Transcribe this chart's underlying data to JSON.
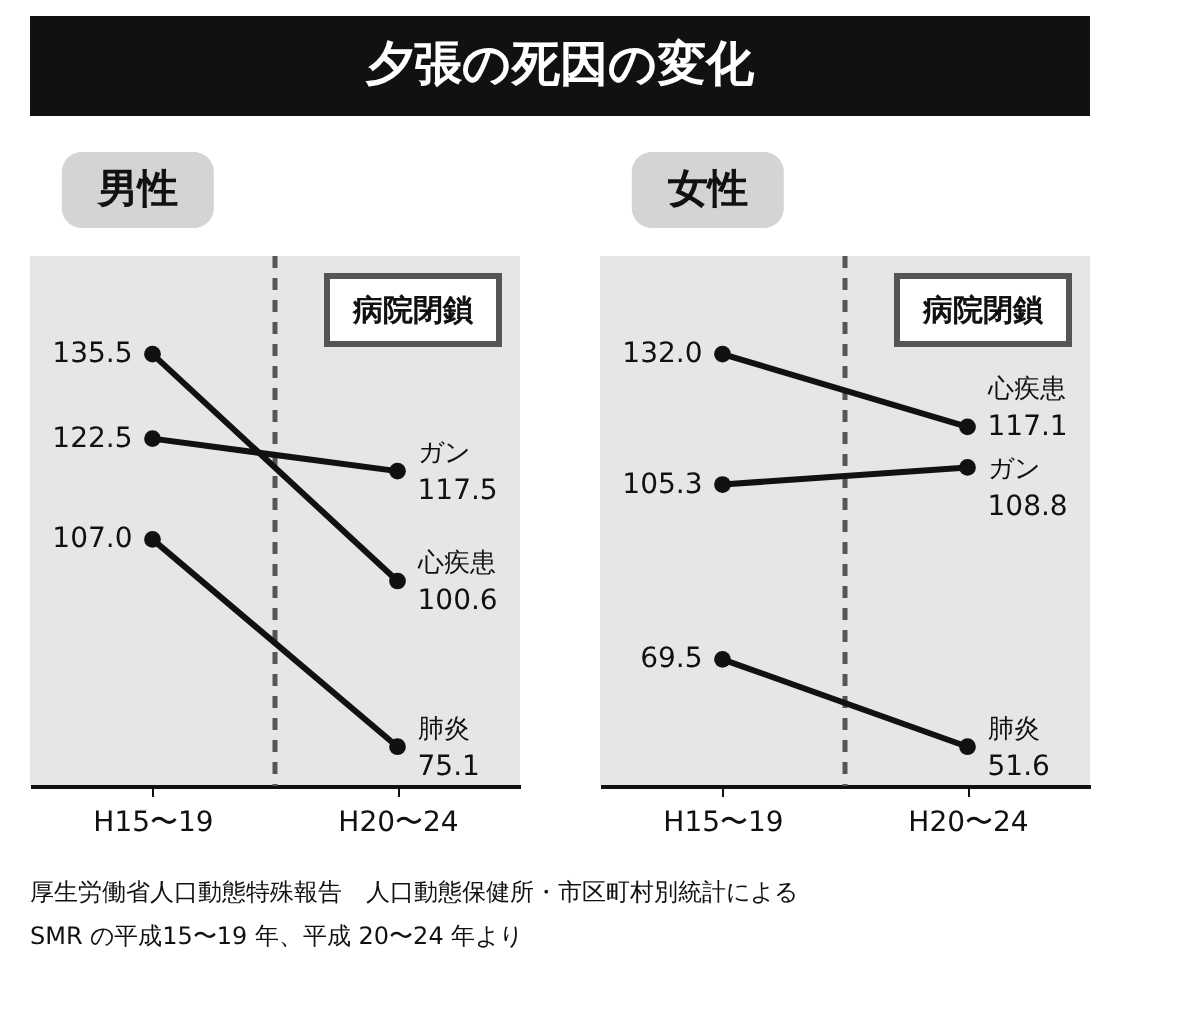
{
  "chart_data": [
    {
      "type": "line",
      "title": "夕張の死因の変化",
      "subtitle": "男性",
      "categories": [
        "H15〜19",
        "H20〜24"
      ],
      "marker": "circle",
      "series": [
        {
          "name": "ガン",
          "color": "#111111",
          "values": [
            122.5,
            117.5
          ],
          "value_labels": [
            "122.5",
            "117.5"
          ]
        },
        {
          "name": "心疾患",
          "color": "#111111",
          "values": [
            135.5,
            100.6
          ],
          "value_labels": [
            "135.5",
            "100.6"
          ]
        },
        {
          "name": "肺炎",
          "color": "#111111",
          "values": [
            107.0,
            75.1
          ],
          "value_labels": [
            "107.0",
            "75.1"
          ]
        }
      ],
      "annotations": [
        "病院閉鎖",
        "厚生労働省人口動態特殊報告　人口動態保健所・市区町村別統計による",
        "SMR の平成15〜19 年、平成 20〜24 年より"
      ]
    },
    {
      "type": "line",
      "subtitle": "女性",
      "categories": [
        "H15〜19",
        "H20〜24"
      ],
      "marker": "circle",
      "series": [
        {
          "name": "心疾患",
          "color": "#111111",
          "values": [
            132.0,
            117.1
          ],
          "value_labels": [
            "132.0",
            "117.1"
          ]
        },
        {
          "name": "ガン",
          "color": "#111111",
          "values": [
            105.3,
            108.8
          ],
          "value_labels": [
            "105.3",
            "108.8"
          ]
        },
        {
          "name": "肺炎",
          "color": "#111111",
          "values": [
            69.5,
            51.6
          ],
          "value_labels": [
            "69.5",
            "51.6"
          ]
        }
      ],
      "annotations": [
        "病院閉鎖"
      ]
    }
  ]
}
